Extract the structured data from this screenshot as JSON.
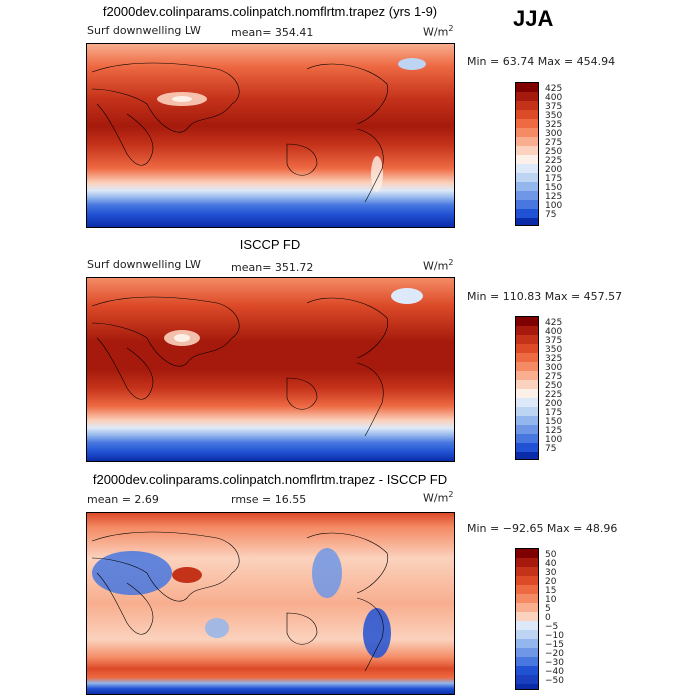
{
  "season": "JJA",
  "panels": [
    {
      "title": "f2000dev.colinparams.colinpatch.nomflrtm.trapez (yrs 1-9)",
      "left_label": "Surf downwelling LW",
      "mean_text": "mean= 354.41",
      "units": "W/m",
      "units_sup": "2",
      "minmax": "Min =  63.74 Max = 454.94",
      "colorbar_labels": [
        "425",
        "400",
        "375",
        "350",
        "325",
        "300",
        "275",
        "250",
        "225",
        "200",
        "175",
        "150",
        "125",
        "100",
        "75"
      ]
    },
    {
      "title": "ISCCP FD",
      "left_label": "Surf downwelling LW",
      "mean_text": "mean= 351.72",
      "units": "W/m",
      "units_sup": "2",
      "minmax": "Min = 110.83 Max = 457.57",
      "colorbar_labels": [
        "425",
        "400",
        "375",
        "350",
        "325",
        "300",
        "275",
        "250",
        "225",
        "200",
        "175",
        "150",
        "125",
        "100",
        "75"
      ]
    },
    {
      "title": "f2000dev.colinparams.colinpatch.nomflrtm.trapez - ISCCP FD",
      "left_label": "mean =    2.69",
      "mean_text": "rmse =   16.55",
      "units": "W/m",
      "units_sup": "2",
      "minmax": "Min = −92.65 Max =  48.96",
      "colorbar_labels": [
        "50",
        "40",
        "30",
        "20",
        "15",
        "10",
        "5",
        "0",
        "−5",
        "−10",
        "−15",
        "−20",
        "−30",
        "−40",
        "−50"
      ]
    }
  ],
  "colors": {
    "scale": [
      "#7f0000",
      "#a51a0c",
      "#c4321a",
      "#dc4a28",
      "#ee6a43",
      "#f48b65",
      "#f8ae8f",
      "#fbd2bd",
      "#fdf0e8",
      "#dde9f8",
      "#bdd4f2",
      "#93b6ec",
      "#6f97e6",
      "#4777df",
      "#2152d4",
      "#0b2ca8"
    ]
  }
}
